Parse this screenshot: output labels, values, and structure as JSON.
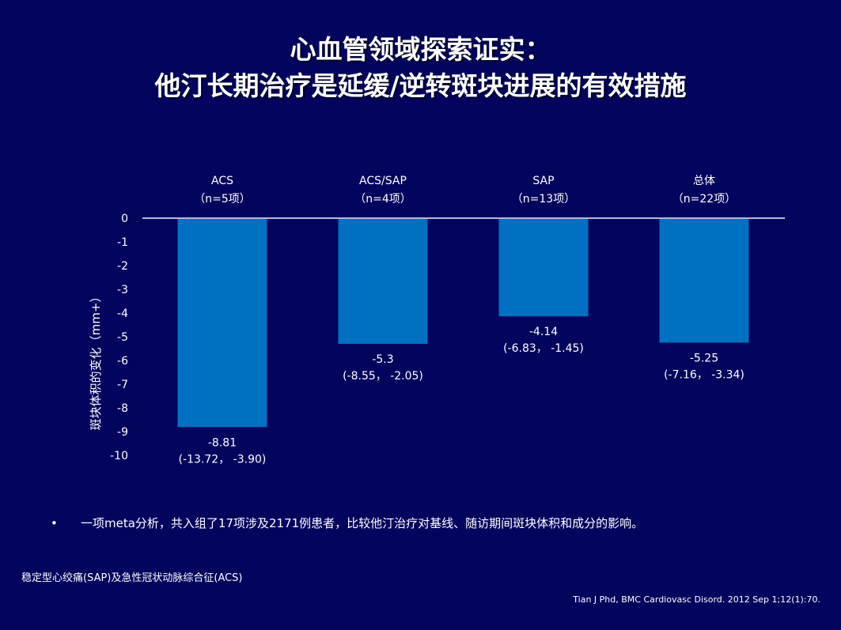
{
  "slide": {
    "title_line1": "心血管领域探索证实：",
    "title_line2": "他汀长期治疗是延缓/逆转斑块进展的有效措施",
    "bullet_dot": "•",
    "bullet_text": "一项meta分析，共入组了17项涉及2171例患者，比较他汀治疗对基线、随访期间斑块体积和成分的影响。",
    "footnote": "稳定型心绞痛(SAP)及急性冠状动脉综合征(ACS)",
    "citation": "Tian J Phd, BMC Cardiovasc Disord. 2012 Sep 1;12(1):70."
  },
  "chart_data": {
    "type": "bar",
    "categories": [
      "ACS",
      "ACS/SAP",
      "SAP",
      "总体"
    ],
    "category_sublabels": [
      "（n=5项）",
      "（n=4项）",
      "（n=13项）",
      "（n=22项）"
    ],
    "values": [
      -8.81,
      -5.3,
      -4.14,
      -5.25
    ],
    "value_labels": [
      "-8.81",
      "-5.3",
      "-4.14",
      "-5.25"
    ],
    "ci_labels": [
      "(-13.72， -3.90)",
      "(-8.55， -2.05)",
      "(-6.83， -1.45)",
      "(-7.16， -3.34)"
    ],
    "ylabel": "斑块体积的变化（mm+）",
    "xlabel": "",
    "ylim": [
      -10,
      0
    ],
    "yticks": [
      0,
      -1,
      -2,
      -3,
      -4,
      -5,
      -6,
      -7,
      -8,
      -9,
      -10
    ],
    "bar_color": "#0070c0",
    "axis_color": "#b8b8d0",
    "grid": false
  }
}
